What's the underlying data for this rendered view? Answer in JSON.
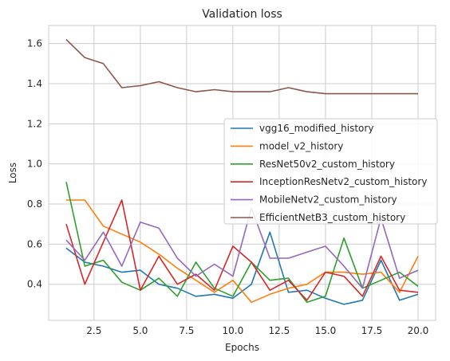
{
  "chart_data": {
    "type": "line",
    "title": "Validation loss",
    "xlabel": "Epochs",
    "ylabel": "Loss",
    "xlim": [
      0.05,
      20.95
    ],
    "ylim": [
      0.22,
      1.69
    ],
    "xticks": [
      2.5,
      5.0,
      7.5,
      10.0,
      12.5,
      15.0,
      17.5,
      20.0
    ],
    "xtick_labels": [
      "2.5",
      "5.0",
      "7.5",
      "10.0",
      "12.5",
      "15.0",
      "17.5",
      "20.0"
    ],
    "yticks": [
      0.4,
      0.6,
      0.8,
      1.0,
      1.2,
      1.4,
      1.6
    ],
    "ytick_labels": [
      "0.4",
      "0.6",
      "0.8",
      "1.0",
      "1.2",
      "1.4",
      "1.6"
    ],
    "grid": true,
    "legend_position": "center-right",
    "x": [
      1,
      2,
      3,
      4,
      5,
      6,
      7,
      8,
      9,
      10,
      11,
      12,
      13,
      14,
      15,
      16,
      17,
      18,
      19,
      20
    ],
    "series": [
      {
        "name": "vgg16_modified_history",
        "color": "#1f77b4",
        "values": [
          0.58,
          0.51,
          0.49,
          0.46,
          0.47,
          0.4,
          0.38,
          0.34,
          0.35,
          0.33,
          0.4,
          0.66,
          0.36,
          0.37,
          0.33,
          0.3,
          0.32,
          0.52,
          0.32,
          0.35
        ]
      },
      {
        "name": "model_v2_history",
        "color": "#ff7f0e",
        "values": [
          0.82,
          0.82,
          0.69,
          0.65,
          0.61,
          0.55,
          0.48,
          0.42,
          0.36,
          0.42,
          0.31,
          0.35,
          0.38,
          0.4,
          0.46,
          0.46,
          0.45,
          0.46,
          0.36,
          0.54
        ]
      },
      {
        "name": "ResNet50v2_custom_history",
        "color": "#2ca02c",
        "values": [
          0.91,
          0.49,
          0.52,
          0.41,
          0.37,
          0.43,
          0.34,
          0.51,
          0.38,
          0.34,
          0.51,
          0.42,
          0.43,
          0.31,
          0.34,
          0.63,
          0.38,
          0.42,
          0.46,
          0.39
        ]
      },
      {
        "name": "InceptionResNetv2_custom_history",
        "color": "#d62728",
        "values": [
          0.7,
          0.4,
          0.61,
          0.82,
          0.37,
          0.54,
          0.4,
          0.45,
          0.37,
          0.59,
          0.51,
          0.37,
          0.42,
          0.32,
          0.46,
          0.44,
          0.34,
          0.54,
          0.37,
          0.36
        ]
      },
      {
        "name": "MobileNetv2_custom_history",
        "color": "#9467bd",
        "values": [
          0.62,
          0.52,
          0.66,
          0.49,
          0.71,
          0.68,
          0.53,
          0.44,
          0.5,
          0.44,
          0.78,
          0.53,
          0.53,
          0.56,
          0.59,
          0.49,
          0.38,
          0.73,
          0.43,
          0.47
        ]
      },
      {
        "name": "EfficientNetB3_custom_history",
        "color": "#8c564b",
        "values": [
          1.62,
          1.53,
          1.5,
          1.38,
          1.39,
          1.41,
          1.38,
          1.36,
          1.37,
          1.36,
          1.36,
          1.36,
          1.38,
          1.36,
          1.35,
          1.35,
          1.35,
          1.35,
          1.35,
          1.35
        ]
      }
    ]
  }
}
